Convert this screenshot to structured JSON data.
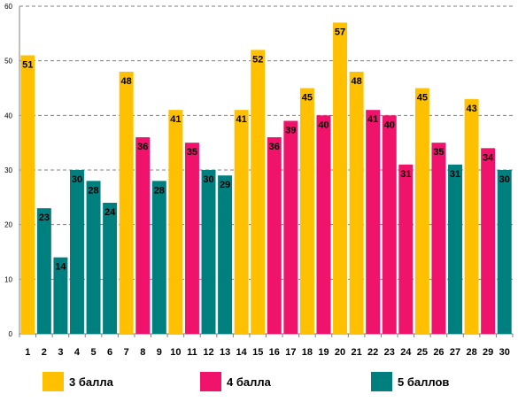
{
  "chart_data": {
    "type": "bar",
    "categories": [
      "1",
      "2",
      "3",
      "4",
      "5",
      "6",
      "7",
      "8",
      "9",
      "10",
      "11",
      "12",
      "13",
      "14",
      "15",
      "16",
      "17",
      "18",
      "19",
      "20",
      "21",
      "22",
      "23",
      "24",
      "25",
      "26",
      "27",
      "28",
      "29",
      "30"
    ],
    "values": [
      51,
      23,
      14,
      30,
      28,
      24,
      48,
      36,
      28,
      41,
      35,
      30,
      29,
      41,
      52,
      36,
      39,
      45,
      40,
      57,
      48,
      41,
      40,
      31,
      45,
      35,
      31,
      43,
      34,
      30
    ],
    "groups": [
      0,
      2,
      2,
      2,
      2,
      2,
      0,
      1,
      2,
      0,
      1,
      2,
      2,
      0,
      0,
      1,
      1,
      0,
      1,
      0,
      0,
      1,
      1,
      1,
      0,
      1,
      2,
      0,
      1,
      2
    ],
    "series": [
      {
        "name": "3 балла",
        "color": "#FFC000"
      },
      {
        "name": "4 балла",
        "color": "#F0136B"
      },
      {
        "name": "5 баллов",
        "color": "#007F7F"
      }
    ],
    "ylim": [
      0,
      60
    ],
    "yticks": [
      "0",
      "10",
      "20",
      "30",
      "40",
      "50",
      "60"
    ],
    "grid": true,
    "legend_position": "bottom"
  }
}
